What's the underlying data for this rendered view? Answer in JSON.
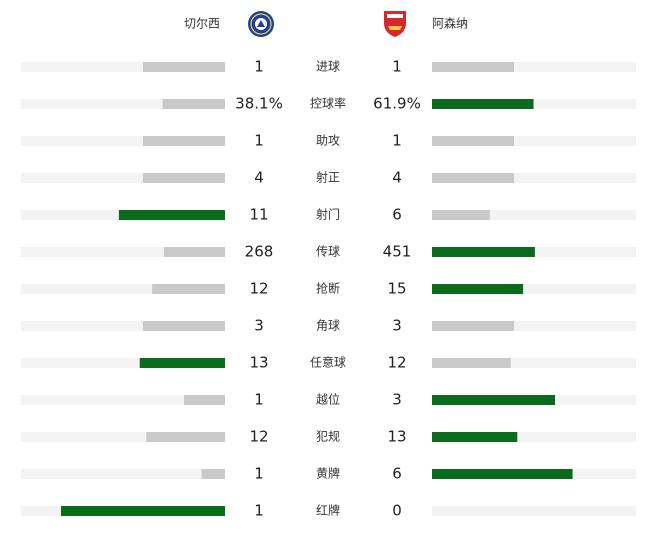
{
  "chart_data": {
    "type": "comparison-bar",
    "categories": [
      "进球",
      "控球率",
      "助攻",
      "射正",
      "射门",
      "传球",
      "抢断",
      "角球",
      "任意球",
      "越位",
      "犯规",
      "黄牌",
      "红牌"
    ],
    "series": [
      {
        "name": "切尔西",
        "values": [
          1,
          38.1,
          1,
          4,
          11,
          268,
          12,
          3,
          13,
          1,
          12,
          1,
          1
        ],
        "value_labels": [
          null,
          "38.1%",
          null,
          null,
          null,
          null,
          null,
          null,
          null,
          null,
          null,
          null,
          null
        ]
      },
      {
        "name": "阿森纳",
        "values": [
          1,
          61.9,
          1,
          4,
          6,
          451,
          15,
          3,
          12,
          3,
          13,
          6,
          0
        ],
        "value_labels": [
          null,
          "61.9%",
          null,
          null,
          null,
          null,
          null,
          null,
          null,
          null,
          null,
          null,
          null
        ]
      }
    ],
    "lead_color": "#0b6b1d",
    "base_color": "#c9c9c9",
    "track_color": "#f3f3f3"
  }
}
